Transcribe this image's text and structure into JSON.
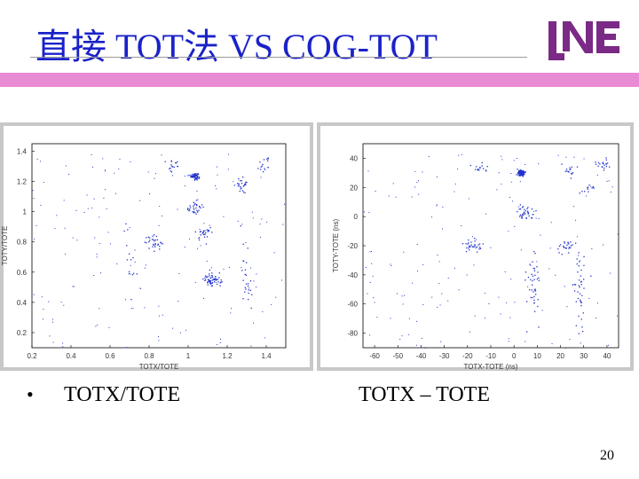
{
  "slide": {
    "title": "直接 TOT法 VS COG-TOT",
    "page_number": "20",
    "accent_color": "#e98ad4",
    "title_color": "#1a22c8"
  },
  "logo": {
    "text": "LNE",
    "color": "#7b2a86"
  },
  "captions": {
    "left": "TOTX/TOTE",
    "right": "TOTX – TOTE"
  },
  "chart_data": [
    {
      "type": "scatter",
      "xlabel": "TOTX/TOTE",
      "ylabel": "TOTY/TOTE",
      "xlim": [
        0.2,
        1.5
      ],
      "ylim": [
        0.1,
        1.45
      ],
      "xticks": [
        0.2,
        0.4,
        0.6,
        0.8,
        1.0,
        1.2,
        1.4
      ],
      "xtick_labels": [
        "0.2",
        "0.4",
        "0.6",
        "0.8",
        "1",
        "1.2",
        "1.4"
      ],
      "yticks": [
        0.2,
        0.4,
        0.6,
        0.8,
        1.0,
        1.2,
        1.4
      ],
      "ytick_labels": [
        "0.2",
        "0.4",
        "0.6",
        "0.8",
        "1",
        "1.2",
        "1.4"
      ],
      "point_color": "#2233cc",
      "clusters": [
        {
          "x": 1.03,
          "y": 1.24,
          "n": 90
        },
        {
          "x": 1.03,
          "y": 1.03,
          "n": 30
        },
        {
          "x": 1.08,
          "y": 0.86,
          "n": 25
        },
        {
          "x": 0.82,
          "y": 0.8,
          "n": 30
        },
        {
          "x": 1.28,
          "y": 1.18,
          "n": 25
        },
        {
          "x": 0.92,
          "y": 1.3,
          "n": 15
        },
        {
          "x": 1.38,
          "y": 1.32,
          "n": 15
        },
        {
          "x": 1.12,
          "y": 0.55,
          "n": 60
        },
        {
          "x": 1.3,
          "y": 0.6,
          "n": 25
        },
        {
          "x": 0.7,
          "y": 0.7,
          "n": 15
        }
      ]
    },
    {
      "type": "scatter",
      "xlabel": "TOTX-TOTE (ns)",
      "ylabel": "TOTY-TOTE (ns)",
      "xlim": [
        -65,
        45
      ],
      "ylim": [
        -90,
        50
      ],
      "xticks": [
        -60,
        -50,
        -40,
        -30,
        -20,
        -10,
        0,
        10,
        20,
        30,
        40
      ],
      "xtick_labels": [
        "-60",
        "-50",
        "-40",
        "-30",
        "-20",
        "-10",
        "0",
        "10",
        "20",
        "30",
        "40"
      ],
      "yticks": [
        40,
        20,
        0,
        -20,
        -40,
        -60,
        -80
      ],
      "ytick_labels": [
        "40",
        "20",
        "0",
        "-20",
        "-40",
        "-60",
        "-80"
      ],
      "point_color": "#2233cc",
      "clusters": [
        {
          "x": 3,
          "y": 30,
          "n": 90
        },
        {
          "x": 5,
          "y": 3,
          "n": 35
        },
        {
          "x": -18,
          "y": -20,
          "n": 30
        },
        {
          "x": 22,
          "y": -20,
          "n": 25
        },
        {
          "x": 38,
          "y": 36,
          "n": 20
        },
        {
          "x": -15,
          "y": 33,
          "n": 15
        },
        {
          "x": 24,
          "y": 32,
          "n": 15
        },
        {
          "x": 32,
          "y": 20,
          "n": 12
        },
        {
          "x": 8,
          "y": -45,
          "n": 40
        },
        {
          "x": 28,
          "y": -50,
          "n": 40
        }
      ]
    }
  ]
}
